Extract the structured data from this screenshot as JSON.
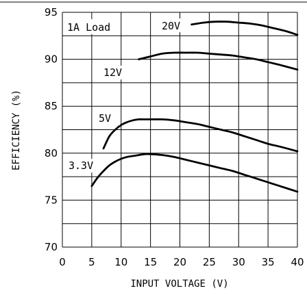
{
  "chart_data": {
    "type": "line",
    "xlabel": "INPUT VOLTAGE (V)",
    "ylabel": "EFFICIENCY (%)",
    "xlim": [
      0,
      40
    ],
    "ylim": [
      70,
      95
    ],
    "x_ticks": [
      "0",
      "5",
      "10",
      "15",
      "20",
      "25",
      "30",
      "35",
      "40"
    ],
    "y_ticks": [
      "70",
      "75",
      "80",
      "85",
      "90",
      "95"
    ],
    "grid": true,
    "annotations": [
      "1A Load"
    ],
    "series": [
      {
        "name": "20V",
        "x": [
          22,
          24,
          26,
          28,
          30,
          32,
          34,
          36,
          38,
          40
        ],
        "y": [
          93.7,
          93.9,
          94.0,
          94.0,
          93.9,
          93.8,
          93.6,
          93.3,
          93.0,
          92.6
        ]
      },
      {
        "name": "12V",
        "x": [
          13,
          15,
          17,
          19,
          21,
          23,
          25,
          27,
          29,
          31,
          33,
          35,
          37,
          40
        ],
        "y": [
          90.0,
          90.3,
          90.6,
          90.7,
          90.7,
          90.7,
          90.6,
          90.5,
          90.4,
          90.2,
          90.0,
          89.7,
          89.4,
          88.9
        ]
      },
      {
        "name": "5V",
        "x": [
          7,
          8,
          9,
          10,
          11,
          12,
          13,
          14,
          15,
          17,
          19,
          21,
          23,
          25,
          27,
          29,
          31,
          33,
          35,
          37,
          40
        ],
        "y": [
          80.5,
          81.8,
          82.5,
          83.0,
          83.3,
          83.5,
          83.6,
          83.6,
          83.6,
          83.6,
          83.5,
          83.3,
          83.1,
          82.8,
          82.5,
          82.2,
          81.8,
          81.4,
          81.0,
          80.7,
          80.2
        ]
      },
      {
        "name": "3.3V",
        "x": [
          5,
          6,
          7,
          8,
          9,
          10,
          11,
          12,
          13,
          14,
          15,
          17,
          19,
          21,
          23,
          25,
          27,
          29,
          31,
          33,
          35,
          37,
          40
        ],
        "y": [
          76.5,
          77.4,
          78.1,
          78.7,
          79.1,
          79.4,
          79.6,
          79.7,
          79.8,
          79.9,
          79.9,
          79.8,
          79.6,
          79.3,
          79.0,
          78.7,
          78.4,
          78.1,
          77.7,
          77.3,
          76.9,
          76.5,
          75.9
        ]
      }
    ]
  }
}
